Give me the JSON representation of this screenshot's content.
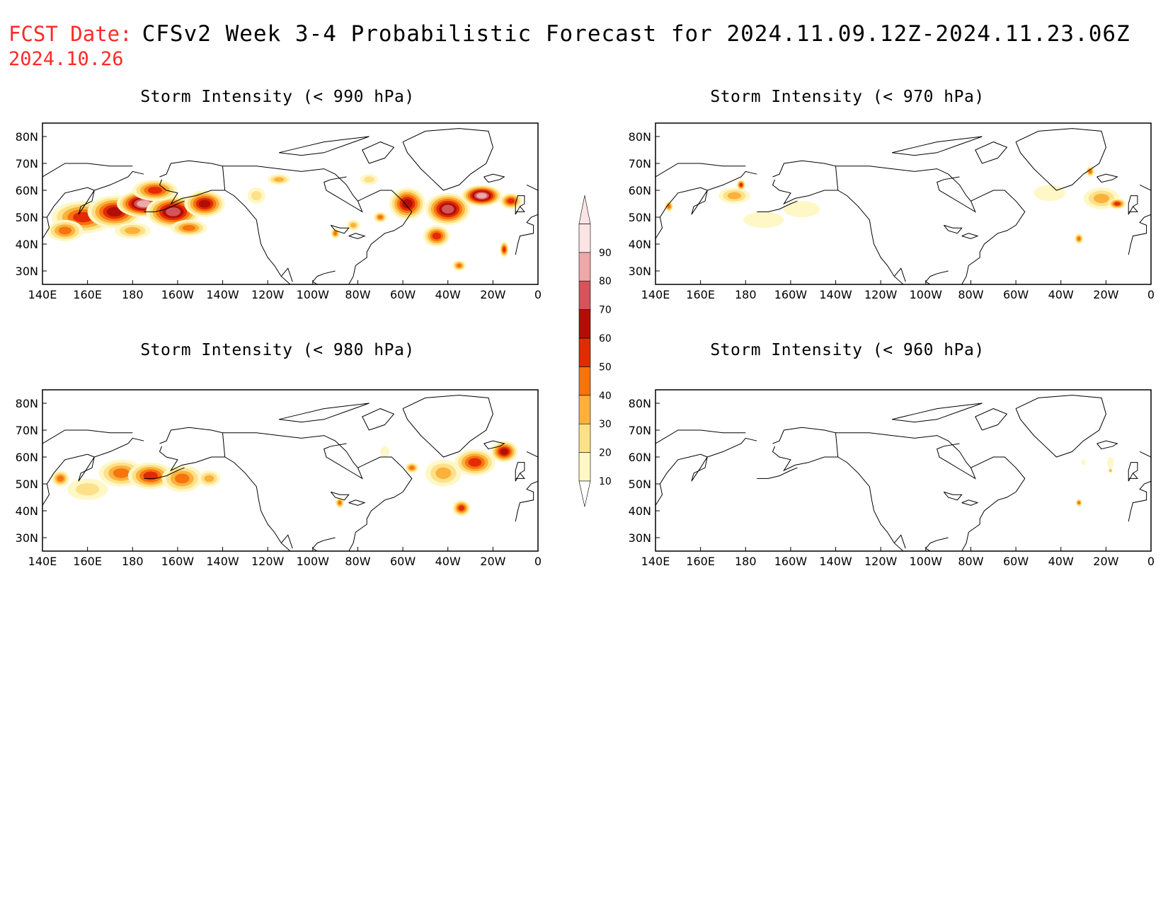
{
  "header": {
    "fcst_label": "FCST Date:",
    "fcst_date": "2024.10.26",
    "title": "CFSv2 Week 3-4 Probabilistic Forecast for 2024.11.09.12Z-2024.11.23.06Z"
  },
  "axis": {
    "lon_labels": [
      "140E",
      "160E",
      "180",
      "160W",
      "140W",
      "120W",
      "100W",
      "80W",
      "60W",
      "40W",
      "20W",
      "0"
    ],
    "lat_labels": [
      "80N",
      "70N",
      "60N",
      "50N",
      "40N",
      "30N"
    ],
    "lat_values": [
      80,
      70,
      60,
      50,
      40,
      30
    ],
    "lon_range": [
      140,
      360
    ],
    "lat_range": [
      25,
      85
    ]
  },
  "colorbar": {
    "levels": [
      10,
      20,
      30,
      40,
      50,
      60,
      70,
      80,
      90
    ],
    "colors": [
      "#fff7c6",
      "#fde18a",
      "#fbb13b",
      "#f5740e",
      "#e32a05",
      "#b10f05",
      "#d2555b",
      "#eda8a8",
      "#fde4e4"
    ]
  },
  "panels": [
    {
      "title": "Storm Intensity (< 990 hPa)",
      "blobs": [
        {
          "lon": 158,
          "lat": 50,
          "rx": 14,
          "ry": 6,
          "p": 55
        },
        {
          "lon": 172,
          "lat": 52,
          "rx": 12,
          "ry": 6,
          "p": 60
        },
        {
          "lon": 185,
          "lat": 55,
          "rx": 12,
          "ry": 5,
          "p": 80
        },
        {
          "lon": 198,
          "lat": 52,
          "rx": 12,
          "ry": 6,
          "p": 70
        },
        {
          "lon": 212,
          "lat": 55,
          "rx": 9,
          "ry": 5,
          "p": 60
        },
        {
          "lon": 150,
          "lat": 45,
          "rx": 8,
          "ry": 4,
          "p": 45
        },
        {
          "lon": 190,
          "lat": 60,
          "rx": 10,
          "ry": 4,
          "p": 55
        },
        {
          "lon": 180,
          "lat": 45,
          "rx": 8,
          "ry": 3,
          "p": 35
        },
        {
          "lon": 205,
          "lat": 46,
          "rx": 8,
          "ry": 3,
          "p": 40
        },
        {
          "lon": 235,
          "lat": 58,
          "rx": 4,
          "ry": 3,
          "p": 25
        },
        {
          "lon": 245,
          "lat": 64,
          "rx": 5,
          "ry": 2,
          "p": 30
        },
        {
          "lon": 278,
          "lat": 47,
          "rx": 3,
          "ry": 2,
          "p": 35
        },
        {
          "lon": 290,
          "lat": 50,
          "rx": 3,
          "ry": 2,
          "p": 40
        },
        {
          "lon": 270,
          "lat": 44,
          "rx": 2,
          "ry": 2,
          "p": 45
        },
        {
          "lon": 302,
          "lat": 55,
          "rx": 8,
          "ry": 6,
          "p": 60
        },
        {
          "lon": 320,
          "lat": 53,
          "rx": 10,
          "ry": 6,
          "p": 70
        },
        {
          "lon": 335,
          "lat": 58,
          "rx": 9,
          "ry": 4,
          "p": 80
        },
        {
          "lon": 315,
          "lat": 43,
          "rx": 6,
          "ry": 4,
          "p": 55
        },
        {
          "lon": 348,
          "lat": 56,
          "rx": 5,
          "ry": 3,
          "p": 50
        },
        {
          "lon": 325,
          "lat": 32,
          "rx": 3,
          "ry": 2,
          "p": 40
        },
        {
          "lon": 345,
          "lat": 38,
          "rx": 2,
          "ry": 3,
          "p": 55
        },
        {
          "lon": 285,
          "lat": 64,
          "rx": 4,
          "ry": 2,
          "p": 25
        }
      ]
    },
    {
      "title": "Storm Intensity (< 970 hPa)",
      "blobs": [
        {
          "lon": 146,
          "lat": 54,
          "rx": 2,
          "ry": 2,
          "p": 40
        },
        {
          "lon": 175,
          "lat": 58,
          "rx": 7,
          "ry": 3,
          "p": 30
        },
        {
          "lon": 178,
          "lat": 62,
          "rx": 2,
          "ry": 2,
          "p": 50
        },
        {
          "lon": 188,
          "lat": 49,
          "rx": 9,
          "ry": 3,
          "p": 15
        },
        {
          "lon": 205,
          "lat": 53,
          "rx": 8,
          "ry": 3,
          "p": 15
        },
        {
          "lon": 315,
          "lat": 59,
          "rx": 7,
          "ry": 3,
          "p": 15
        },
        {
          "lon": 338,
          "lat": 57,
          "rx": 8,
          "ry": 4,
          "p": 30
        },
        {
          "lon": 345,
          "lat": 55,
          "rx": 4,
          "ry": 2,
          "p": 50
        },
        {
          "lon": 328,
          "lat": 42,
          "rx": 2,
          "ry": 2,
          "p": 45
        },
        {
          "lon": 333,
          "lat": 67,
          "rx": 2,
          "ry": 2,
          "p": 45
        }
      ]
    },
    {
      "title": "Storm Intensity (< 980 hPa)",
      "blobs": [
        {
          "lon": 148,
          "lat": 52,
          "rx": 4,
          "ry": 3,
          "p": 40
        },
        {
          "lon": 160,
          "lat": 48,
          "rx": 9,
          "ry": 4,
          "p": 20
        },
        {
          "lon": 175,
          "lat": 54,
          "rx": 10,
          "ry": 5,
          "p": 45
        },
        {
          "lon": 188,
          "lat": 53,
          "rx": 10,
          "ry": 5,
          "p": 55
        },
        {
          "lon": 202,
          "lat": 52,
          "rx": 9,
          "ry": 5,
          "p": 45
        },
        {
          "lon": 214,
          "lat": 52,
          "rx": 5,
          "ry": 3,
          "p": 30
        },
        {
          "lon": 272,
          "lat": 43,
          "rx": 2,
          "ry": 2,
          "p": 45
        },
        {
          "lon": 304,
          "lat": 56,
          "rx": 3,
          "ry": 2,
          "p": 45
        },
        {
          "lon": 318,
          "lat": 54,
          "rx": 8,
          "ry": 5,
          "p": 30
        },
        {
          "lon": 332,
          "lat": 58,
          "rx": 9,
          "ry": 5,
          "p": 55
        },
        {
          "lon": 345,
          "lat": 62,
          "rx": 6,
          "ry": 4,
          "p": 60
        },
        {
          "lon": 326,
          "lat": 41,
          "rx": 4,
          "ry": 3,
          "p": 55
        },
        {
          "lon": 292,
          "lat": 62,
          "rx": 2,
          "ry": 2,
          "p": 15
        }
      ]
    },
    {
      "title": "Storm Intensity (< 960 hPa)",
      "blobs": [
        {
          "lon": 328,
          "lat": 43,
          "rx": 1.5,
          "ry": 1.5,
          "p": 45
        },
        {
          "lon": 342,
          "lat": 58,
          "rx": 1.5,
          "ry": 2,
          "p": 15
        },
        {
          "lon": 342,
          "lat": 55,
          "rx": 1,
          "ry": 1,
          "p": 30
        },
        {
          "lon": 330,
          "lat": 58,
          "rx": 1,
          "ry": 1,
          "p": 15
        }
      ]
    }
  ]
}
